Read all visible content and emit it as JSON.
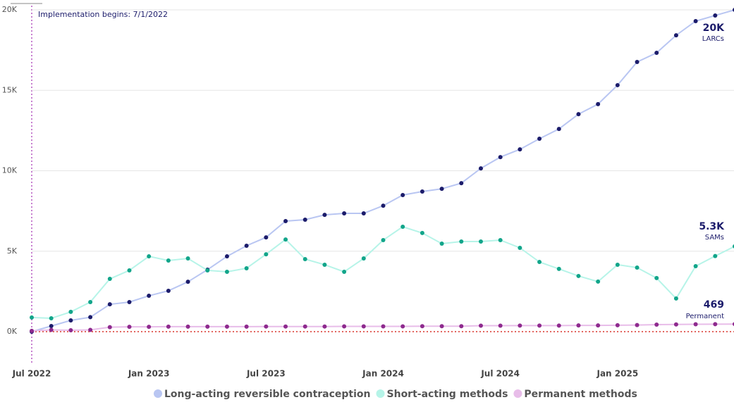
{
  "chart_data": {
    "type": "line",
    "annotation": "Implementation begins: 7/1/2022",
    "categories": [
      "Jul 2022",
      null,
      null,
      null,
      null,
      null,
      "Jan 2023",
      null,
      null,
      null,
      null,
      null,
      "Jul 2023",
      null,
      null,
      null,
      null,
      null,
      "Jan 2024",
      null,
      null,
      null,
      null,
      null,
      "Jul 2024",
      null,
      null,
      null,
      null,
      null,
      "Jan 2025",
      null,
      null,
      null,
      null,
      null,
      null
    ],
    "ylim": [
      0,
      20000
    ],
    "yticks": [
      {
        "value": 0,
        "label": "0K"
      },
      {
        "value": 5000,
        "label": "5K"
      },
      {
        "value": 10000,
        "label": "10K"
      },
      {
        "value": 15000,
        "label": "15K"
      },
      {
        "value": 20000,
        "label": "20K"
      }
    ],
    "grid": true,
    "legend": "bottom",
    "series": [
      {
        "name": "Long-acting reversible contraception",
        "color": "#b9c6f2",
        "marker_color": "#1c1c6b",
        "last_label": "20K",
        "short_name": "LARCs",
        "values": [
          0,
          350,
          700,
          900,
          1700,
          1840,
          2230,
          2540,
          3100,
          3850,
          4680,
          5340,
          5860,
          6870,
          6960,
          7260,
          7350,
          7350,
          7830,
          8490,
          8710,
          8880,
          9230,
          10150,
          10850,
          11330,
          11990,
          12600,
          13520,
          14140,
          15320,
          16760,
          17330,
          18420,
          19300,
          19650,
          20000
        ]
      },
      {
        "name": "Short-acting methods",
        "color": "#b6f4e8",
        "marker_color": "#12a58a",
        "last_label": "5.3K",
        "short_name": "SAMs",
        "values": [
          880,
          830,
          1230,
          1840,
          3280,
          3810,
          4680,
          4420,
          4550,
          3810,
          3720,
          3940,
          4810,
          5730,
          4510,
          4160,
          3720,
          4550,
          5690,
          6520,
          6130,
          5470,
          5600,
          5600,
          5690,
          5210,
          4330,
          3900,
          3460,
          3110,
          4160,
          3980,
          3330,
          2060,
          4070,
          4700,
          5300
        ]
      },
      {
        "name": "Permanent methods",
        "color": "#e8bde9",
        "marker_color": "#8e2a8e",
        "last_label": "469",
        "short_name": "Permanent",
        "values": [
          50,
          110,
          90,
          110,
          280,
          300,
          300,
          310,
          310,
          310,
          310,
          310,
          320,
          320,
          320,
          320,
          330,
          330,
          330,
          330,
          340,
          340,
          340,
          370,
          370,
          380,
          380,
          380,
          390,
          390,
          400,
          410,
          440,
          450,
          460,
          465,
          469
        ]
      }
    ]
  }
}
